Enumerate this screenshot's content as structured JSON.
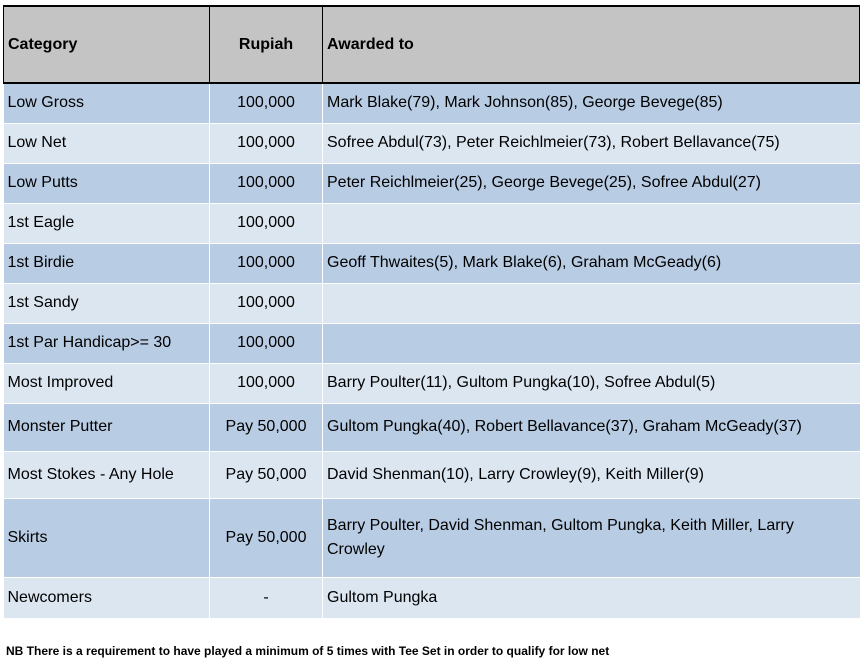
{
  "headers": {
    "category": "Category",
    "rupiah": "Rupiah",
    "awarded_to": "Awarded to"
  },
  "rows": [
    {
      "category": "Low Gross",
      "rupiah": "100,000",
      "awarded_to": "Mark Blake(79), Mark Johnson(85), George Bevege(85)"
    },
    {
      "category": "Low Net",
      "rupiah": "100,000",
      "awarded_to": "Sofree Abdul(73), Peter Reichlmeier(73), Robert Bellavance(75)"
    },
    {
      "category": "Low Putts",
      "rupiah": "100,000",
      "awarded_to": "Peter Reichlmeier(25), George Bevege(25), Sofree Abdul(27)"
    },
    {
      "category": "1st Eagle",
      "rupiah": "100,000",
      "awarded_to": ""
    },
    {
      "category": "1st Birdie",
      "rupiah": "100,000",
      "awarded_to": "Geoff Thwaites(5), Mark Blake(6), Graham McGeady(6)"
    },
    {
      "category": "1st Sandy",
      "rupiah": "100,000",
      "awarded_to": ""
    },
    {
      "category": "1st Par Handicap>= 30",
      "rupiah": "100,000",
      "awarded_to": ""
    },
    {
      "category": "Most Improved",
      "rupiah": "100,000",
      "awarded_to": "Barry Poulter(11), Gultom Pungka(10), Sofree Abdul(5)"
    },
    {
      "category": "Monster Putter",
      "rupiah": "Pay 50,000",
      "awarded_to": "Gultom Pungka(40), Robert Bellavance(37), Graham McGeady(37)"
    },
    {
      "category": "Most Stokes - Any Hole",
      "rupiah": "Pay 50,000",
      "awarded_to": "David Shenman(10), Larry Crowley(9), Keith Miller(9)"
    },
    {
      "category": "Skirts",
      "rupiah": "Pay 50,000",
      "awarded_to": "Barry Poulter, David Shenman, Gultom Pungka, Keith Miller, Larry Crowley"
    },
    {
      "category": "Newcomers",
      "rupiah": "-",
      "awarded_to": "Gultom Pungka"
    }
  ],
  "colors": {
    "header_bg": "#c4c4c4",
    "row_odd": "#b8cce4",
    "row_even": "#dce6f1"
  },
  "note": "NB There is a requirement to have played a minimum of 5 times with Tee Set in order to qualify for low net"
}
